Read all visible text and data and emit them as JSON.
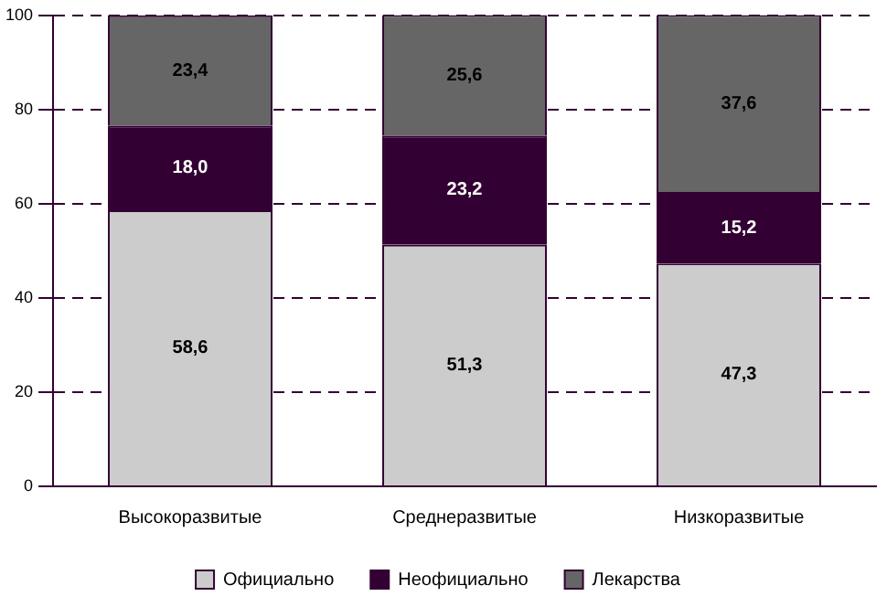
{
  "chart_data": {
    "type": "bar",
    "stacked": true,
    "categories": [
      "Высокоразвитые",
      "Среднеразвитые",
      "Низкоразвитые"
    ],
    "series": [
      {
        "name": "Официально",
        "color": "#cccccc",
        "values": [
          58.6,
          51.3,
          47.3
        ],
        "value_labels": [
          "58,6",
          "51,3",
          "47,3"
        ]
      },
      {
        "name": "Неофициально",
        "color": "#330033",
        "values": [
          18.0,
          23.2,
          15.2
        ],
        "value_labels": [
          "18,0",
          "23,2",
          "15,2"
        ]
      },
      {
        "name": "Лекарства",
        "color": "#666666",
        "values": [
          23.4,
          25.6,
          37.6
        ],
        "value_labels": [
          "23,4",
          "25,6",
          "37,6"
        ]
      }
    ],
    "ylim": [
      0,
      100
    ],
    "yticks": [
      0,
      20,
      40,
      60,
      80,
      100
    ],
    "grid": "y",
    "line_style": "dashed",
    "legend": "bottom"
  }
}
